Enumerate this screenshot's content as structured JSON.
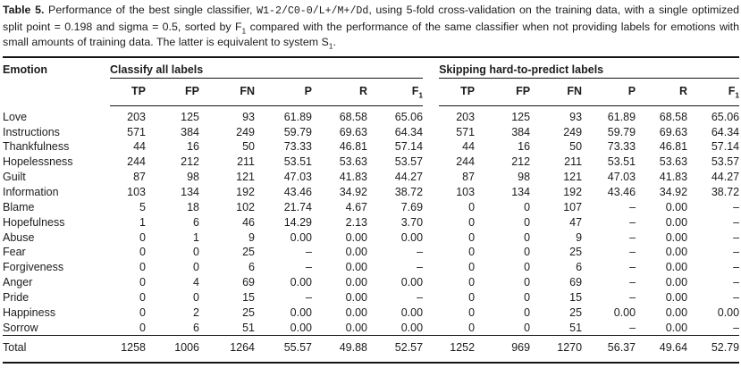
{
  "caption": {
    "segments": [
      {
        "style": "bold",
        "text": "Table 5."
      },
      {
        "style": "normal",
        "text": " Performance of the best single classifier, "
      },
      {
        "style": "mono",
        "text": "W1-2/C0-0/L+/M+/Dd"
      },
      {
        "style": "normal",
        "text": ", using 5-fold cross-validation on the training data, with a single optimized split point = 0.198 and sigma = 0.5, sorted by F"
      },
      {
        "style": "sub",
        "text": "1"
      },
      {
        "style": "normal",
        "text": " compared with the performance of the same classifier when not providing labels for emotions with small amounts of training data. The latter is equivalent to system S"
      },
      {
        "style": "sub",
        "text": "1"
      },
      {
        "style": "normal",
        "text": "."
      }
    ]
  },
  "table": {
    "emotion_header": "Emotion",
    "column_keys": [
      "tp",
      "fp",
      "fn",
      "p",
      "r",
      "f1"
    ],
    "groups": [
      {
        "id": "all",
        "label": "Classify all labels",
        "columns": [
          {
            "t": "TP"
          },
          {
            "t": "FP"
          },
          {
            "t": "FN"
          },
          {
            "t": "P"
          },
          {
            "t": "R"
          },
          {
            "t": "F",
            "sub": "1"
          }
        ]
      },
      {
        "id": "skip",
        "label": "Skipping hard-to-predict labels",
        "columns": [
          {
            "t": "TP"
          },
          {
            "t": "FP"
          },
          {
            "t": "FN"
          },
          {
            "t": "P"
          },
          {
            "t": "R"
          },
          {
            "t": "F",
            "sub": "1"
          }
        ]
      }
    ],
    "rows": [
      {
        "emotion": "Love",
        "all": [
          "203",
          "125",
          "93",
          "61.89",
          "68.58",
          "65.06"
        ],
        "skip": [
          "203",
          "125",
          "93",
          "61.89",
          "68.58",
          "65.06"
        ]
      },
      {
        "emotion": "Instructions",
        "all": [
          "571",
          "384",
          "249",
          "59.79",
          "69.63",
          "64.34"
        ],
        "skip": [
          "571",
          "384",
          "249",
          "59.79",
          "69.63",
          "64.34"
        ]
      },
      {
        "emotion": "Thankfulness",
        "all": [
          "44",
          "16",
          "50",
          "73.33",
          "46.81",
          "57.14"
        ],
        "skip": [
          "44",
          "16",
          "50",
          "73.33",
          "46.81",
          "57.14"
        ]
      },
      {
        "emotion": "Hopelessness",
        "all": [
          "244",
          "212",
          "211",
          "53.51",
          "53.63",
          "53.57"
        ],
        "skip": [
          "244",
          "212",
          "211",
          "53.51",
          "53.63",
          "53.57"
        ]
      },
      {
        "emotion": "Guilt",
        "all": [
          "87",
          "98",
          "121",
          "47.03",
          "41.83",
          "44.27"
        ],
        "skip": [
          "87",
          "98",
          "121",
          "47.03",
          "41.83",
          "44.27"
        ]
      },
      {
        "emotion": "Information",
        "all": [
          "103",
          "134",
          "192",
          "43.46",
          "34.92",
          "38.72"
        ],
        "skip": [
          "103",
          "134",
          "192",
          "43.46",
          "34.92",
          "38.72"
        ]
      },
      {
        "emotion": "Blame",
        "all": [
          "5",
          "18",
          "102",
          "21.74",
          "4.67",
          "7.69"
        ],
        "skip": [
          "0",
          "0",
          "107",
          "–",
          "0.00",
          "–"
        ]
      },
      {
        "emotion": "Hopefulness",
        "all": [
          "1",
          "6",
          "46",
          "14.29",
          "2.13",
          "3.70"
        ],
        "skip": [
          "0",
          "0",
          "47",
          "–",
          "0.00",
          "–"
        ]
      },
      {
        "emotion": "Abuse",
        "all": [
          "0",
          "1",
          "9",
          "0.00",
          "0.00",
          "0.00"
        ],
        "skip": [
          "0",
          "0",
          "9",
          "–",
          "0.00",
          "–"
        ]
      },
      {
        "emotion": "Fear",
        "all": [
          "0",
          "0",
          "25",
          "–",
          "0.00",
          "–"
        ],
        "skip": [
          "0",
          "0",
          "25",
          "–",
          "0.00",
          "–"
        ]
      },
      {
        "emotion": "Forgiveness",
        "all": [
          "0",
          "0",
          "6",
          "–",
          "0.00",
          "–"
        ],
        "skip": [
          "0",
          "0",
          "6",
          "–",
          "0.00",
          "–"
        ]
      },
      {
        "emotion": "Anger",
        "all": [
          "0",
          "4",
          "69",
          "0.00",
          "0.00",
          "0.00"
        ],
        "skip": [
          "0",
          "0",
          "69",
          "–",
          "0.00",
          "–"
        ]
      },
      {
        "emotion": "Pride",
        "all": [
          "0",
          "0",
          "15",
          "–",
          "0.00",
          "–"
        ],
        "skip": [
          "0",
          "0",
          "15",
          "–",
          "0.00",
          "–"
        ]
      },
      {
        "emotion": "Happiness",
        "all": [
          "0",
          "2",
          "25",
          "0.00",
          "0.00",
          "0.00"
        ],
        "skip": [
          "0",
          "0",
          "25",
          "0.00",
          "0.00",
          "0.00"
        ]
      },
      {
        "emotion": "Sorrow",
        "all": [
          "0",
          "6",
          "51",
          "0.00",
          "0.00",
          "0.00"
        ],
        "skip": [
          "0",
          "0",
          "51",
          "–",
          "0.00",
          "–"
        ]
      }
    ],
    "total": {
      "emotion": "Total",
      "all": [
        "1258",
        "1006",
        "1264",
        "55.57",
        "49.88",
        "52.57"
      ],
      "skip": [
        "1252",
        "969",
        "1270",
        "56.37",
        "49.64",
        "52.79"
      ]
    }
  }
}
